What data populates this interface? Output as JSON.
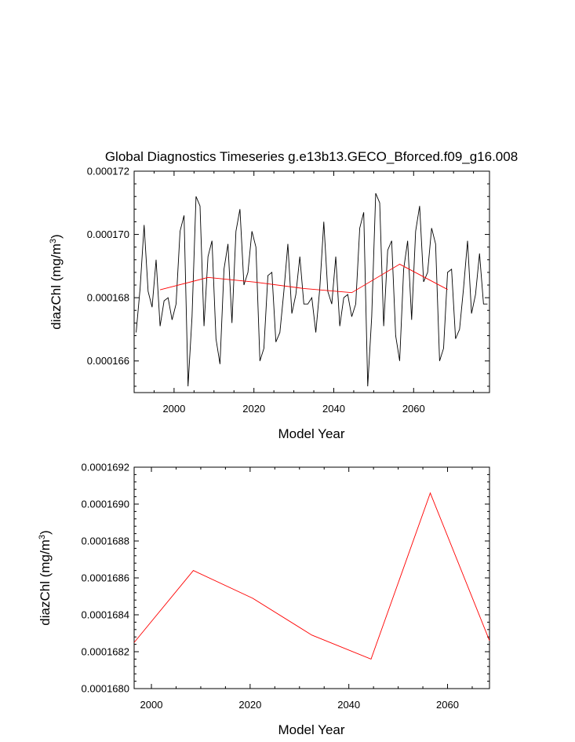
{
  "chart_data": [
    {
      "type": "line",
      "title": "Global Diagnostics Timeseries g.e13b13.GECO_Bforced.f09_g16.008",
      "xlabel": "Model Year",
      "ylabel": "diazChl (mg/m",
      "ylabel_sup": "3",
      "ylabel_end": ")",
      "xlim": [
        1990,
        2079
      ],
      "ylim": [
        0.000165,
        0.000172
      ],
      "xticks": [
        2000,
        2020,
        2040,
        2060
      ],
      "xtick_labels": [
        "2000",
        "2020",
        "2040",
        "2060"
      ],
      "yticks": [
        0.000166,
        0.000168,
        0.00017,
        0.000172
      ],
      "ytick_labels": [
        "0.000166",
        "0.000168",
        "0.000170",
        "0.000172"
      ],
      "series": [
        {
          "color": "#000000",
          "x": [
            1990.5,
            1991.5,
            1992.5,
            1993.5,
            1994.5,
            1995.5,
            1996.5,
            1997.5,
            1998.5,
            1999.5,
            2000.5,
            2001.5,
            2002.5,
            2003.5,
            2004.5,
            2005.5,
            2006.5,
            2007.5,
            2008.5,
            2009.5,
            2010.5,
            2011.5,
            2012.5,
            2013.5,
            2014.5,
            2015.5,
            2016.5,
            2017.5,
            2018.5,
            2019.5,
            2020.5,
            2021.5,
            2022.5,
            2023.5,
            2024.5,
            2025.5,
            2026.5,
            2027.5,
            2028.5,
            2029.5,
            2030.5,
            2031.5,
            2032.5,
            2033.5,
            2034.5,
            2035.5,
            2036.5,
            2037.5,
            2038.5,
            2039.5,
            2040.5,
            2041.5,
            2042.5,
            2043.5,
            2044.5,
            2045.5,
            2046.5,
            2047.5,
            2048.5,
            2049.5,
            2050.5,
            2051.5,
            2052.5,
            2053.5,
            2054.5,
            2055.5,
            2056.5,
            2057.5,
            2058.5,
            2059.5,
            2060.5,
            2061.5,
            2062.5,
            2063.5,
            2064.5,
            2065.5,
            2066.5,
            2067.5,
            2068.5,
            2069.5,
            2070.5,
            2071.5,
            2072.5,
            2073.5,
            2074.5,
            2075.5,
            2076.5,
            2077.5,
            2078.5
          ],
          "y": [
            0.0001669,
            0.0001683,
            0.0001703,
            0.0001682,
            0.0001677,
            0.0001692,
            0.0001671,
            0.0001679,
            0.000168,
            0.0001673,
            0.0001678,
            0.0001701,
            0.0001706,
            0.0001652,
            0.0001674,
            0.0001712,
            0.0001709,
            0.0001671,
            0.0001693,
            0.0001698,
            0.0001667,
            0.0001659,
            0.0001689,
            0.0001697,
            0.0001672,
            0.0001701,
            0.0001708,
            0.0001684,
            0.0001688,
            0.0001701,
            0.0001696,
            0.000166,
            0.0001664,
            0.0001687,
            0.0001688,
            0.0001666,
            0.0001669,
            0.0001682,
            0.0001697,
            0.0001675,
            0.0001681,
            0.0001693,
            0.0001678,
            0.0001678,
            0.000168,
            0.0001669,
            0.0001683,
            0.0001704,
            0.0001682,
            0.0001678,
            0.0001693,
            0.0001671,
            0.000168,
            0.0001681,
            0.0001674,
            0.0001678,
            0.0001702,
            0.0001707,
            0.0001652,
            0.0001674,
            0.0001713,
            0.000171,
            0.0001671,
            0.0001695,
            0.0001698,
            0.0001668,
            0.000166,
            0.0001689,
            0.0001698,
            0.0001673,
            0.0001701,
            0.0001709,
            0.0001685,
            0.0001688,
            0.0001702,
            0.0001697,
            0.000166,
            0.0001664,
            0.0001688,
            0.0001689,
            0.0001667,
            0.000167,
            0.0001683,
            0.0001698,
            0.0001675,
            0.0001681,
            0.0001694,
            0.0001678,
            0.0001678
          ]
        },
        {
          "color": "#ff0000",
          "x": [
            1996.5,
            2008.5,
            2020.5,
            2032.5,
            2044.5,
            2056.5,
            2068.5
          ],
          "y": [
            0.00016825,
            0.00016864,
            0.00016849,
            0.00016829,
            0.00016816,
            0.00016906,
            0.00016826
          ]
        }
      ]
    },
    {
      "type": "line",
      "title": "",
      "xlabel": "Model Year",
      "ylabel": "diazChl (mg/m",
      "ylabel_sup": "3",
      "ylabel_end": ")",
      "xlim": [
        1996.5,
        2068.5
      ],
      "ylim": [
        0.000168,
        0.0001692
      ],
      "xticks": [
        2000,
        2020,
        2040,
        2060
      ],
      "xtick_labels": [
        "2000",
        "2020",
        "2040",
        "2060"
      ],
      "yticks": [
        0.000168,
        0.0001682,
        0.0001684,
        0.0001686,
        0.0001688,
        0.000169,
        0.0001692
      ],
      "ytick_labels": [
        "0.0001680",
        "0.0001682",
        "0.0001684",
        "0.0001686",
        "0.0001688",
        "0.0001690",
        "0.0001692"
      ],
      "series": [
        {
          "color": "#ff0000",
          "x": [
            1996.5,
            2008.5,
            2020.5,
            2032.5,
            2044.5,
            2056.5,
            2068.5
          ],
          "y": [
            0.00016825,
            0.00016864,
            0.00016849,
            0.00016829,
            0.00016816,
            0.00016906,
            0.00016826
          ]
        }
      ]
    }
  ]
}
